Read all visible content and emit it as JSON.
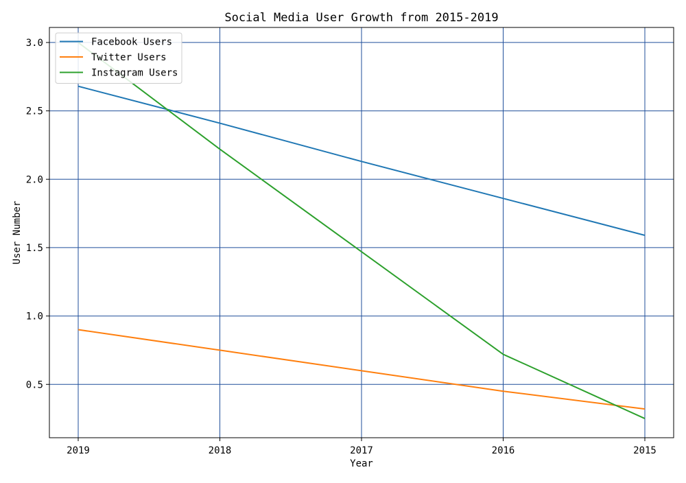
{
  "chart_data": {
    "type": "line",
    "title": "Social Media User Growth from 2015-2019",
    "xlabel": "Year",
    "ylabel": "User Number",
    "categories": [
      "2019",
      "2018",
      "2017",
      "2016",
      "2015"
    ],
    "series": [
      {
        "name": "Facebook Users",
        "values": [
          2.68,
          2.41,
          2.13,
          1.86,
          1.59
        ],
        "color": "#1f77b4"
      },
      {
        "name": "Twitter Users",
        "values": [
          0.9,
          0.75,
          0.6,
          0.45,
          0.32
        ],
        "color": "#ff7f0e"
      },
      {
        "name": "Instagram Users",
        "values": [
          3.0,
          2.22,
          1.47,
          0.72,
          0.25
        ],
        "color": "#2ca02c"
      }
    ],
    "ylim": [
      0.11,
      3.11
    ],
    "yticks": [
      0.5,
      1.0,
      1.5,
      2.0,
      2.5,
      3.0
    ],
    "ytick_labels": [
      "0.5",
      "1.0",
      "1.5",
      "2.0",
      "2.5",
      "3.0"
    ],
    "grid": true,
    "grid_color": "#1f4e9a",
    "legend_position": "top-left"
  }
}
